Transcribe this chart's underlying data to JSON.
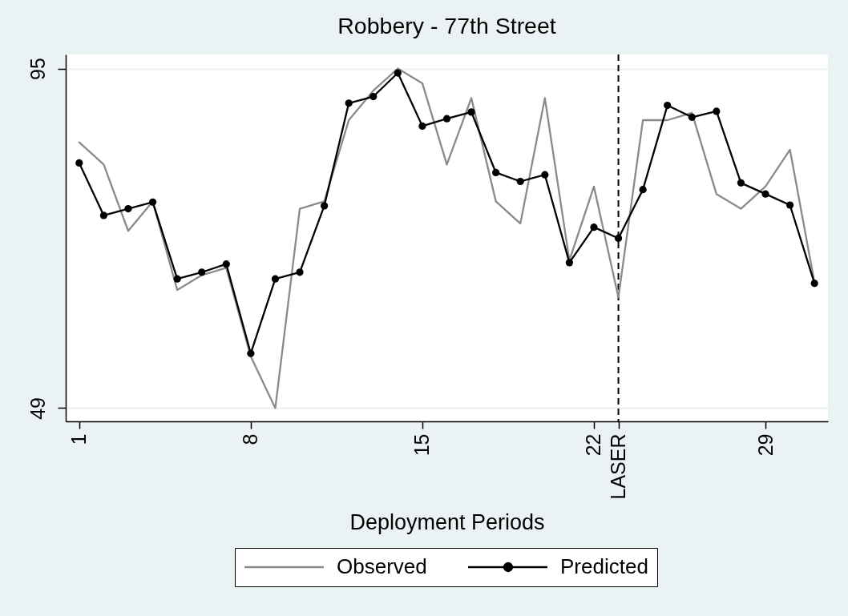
{
  "chart_data": {
    "type": "line",
    "title": "Robbery - 77th Street",
    "xlabel": "Deployment Periods",
    "x": [
      1,
      2,
      3,
      4,
      5,
      6,
      7,
      8,
      9,
      10,
      11,
      12,
      13,
      14,
      15,
      16,
      17,
      18,
      19,
      20,
      21,
      22,
      23,
      24,
      25,
      26,
      27,
      28,
      29,
      30,
      31
    ],
    "xlim": [
      0.45,
      31.55
    ],
    "xticks": [
      1,
      8,
      15,
      22,
      {
        "value": 23,
        "label": "LASER"
      },
      29
    ],
    "ylim": [
      47.2,
      96.9
    ],
    "yticks": [
      49,
      95
    ],
    "grid": "y",
    "legend": "bottom",
    "ref_lines": [
      {
        "axis": "x",
        "value": 23,
        "color": "#000000",
        "line_style": "dashed"
      }
    ],
    "series": [
      {
        "name": "Observed",
        "color": "#8a8a8a",
        "marker": "none",
        "values": [
          85,
          82,
          73,
          77,
          65,
          67,
          68,
          56,
          49,
          76,
          77,
          88,
          92,
          95,
          93,
          82,
          91,
          77,
          74,
          91,
          69,
          79,
          64,
          88,
          88,
          89,
          78,
          76,
          79,
          84,
          66
        ]
      },
      {
        "name": "Predicted",
        "color": "#000000",
        "marker": "circle",
        "values": [
          82.2,
          75.1,
          76.0,
          76.9,
          66.5,
          67.4,
          68.5,
          56.4,
          66.5,
          67.4,
          76.4,
          90.3,
          91.2,
          94.4,
          87.2,
          88.2,
          89.1,
          80.9,
          79.7,
          80.6,
          68.7,
          73.5,
          72.0,
          78.6,
          90.0,
          88.4,
          89.2,
          79.5,
          78.0,
          76.5,
          65.9
        ]
      }
    ]
  }
}
